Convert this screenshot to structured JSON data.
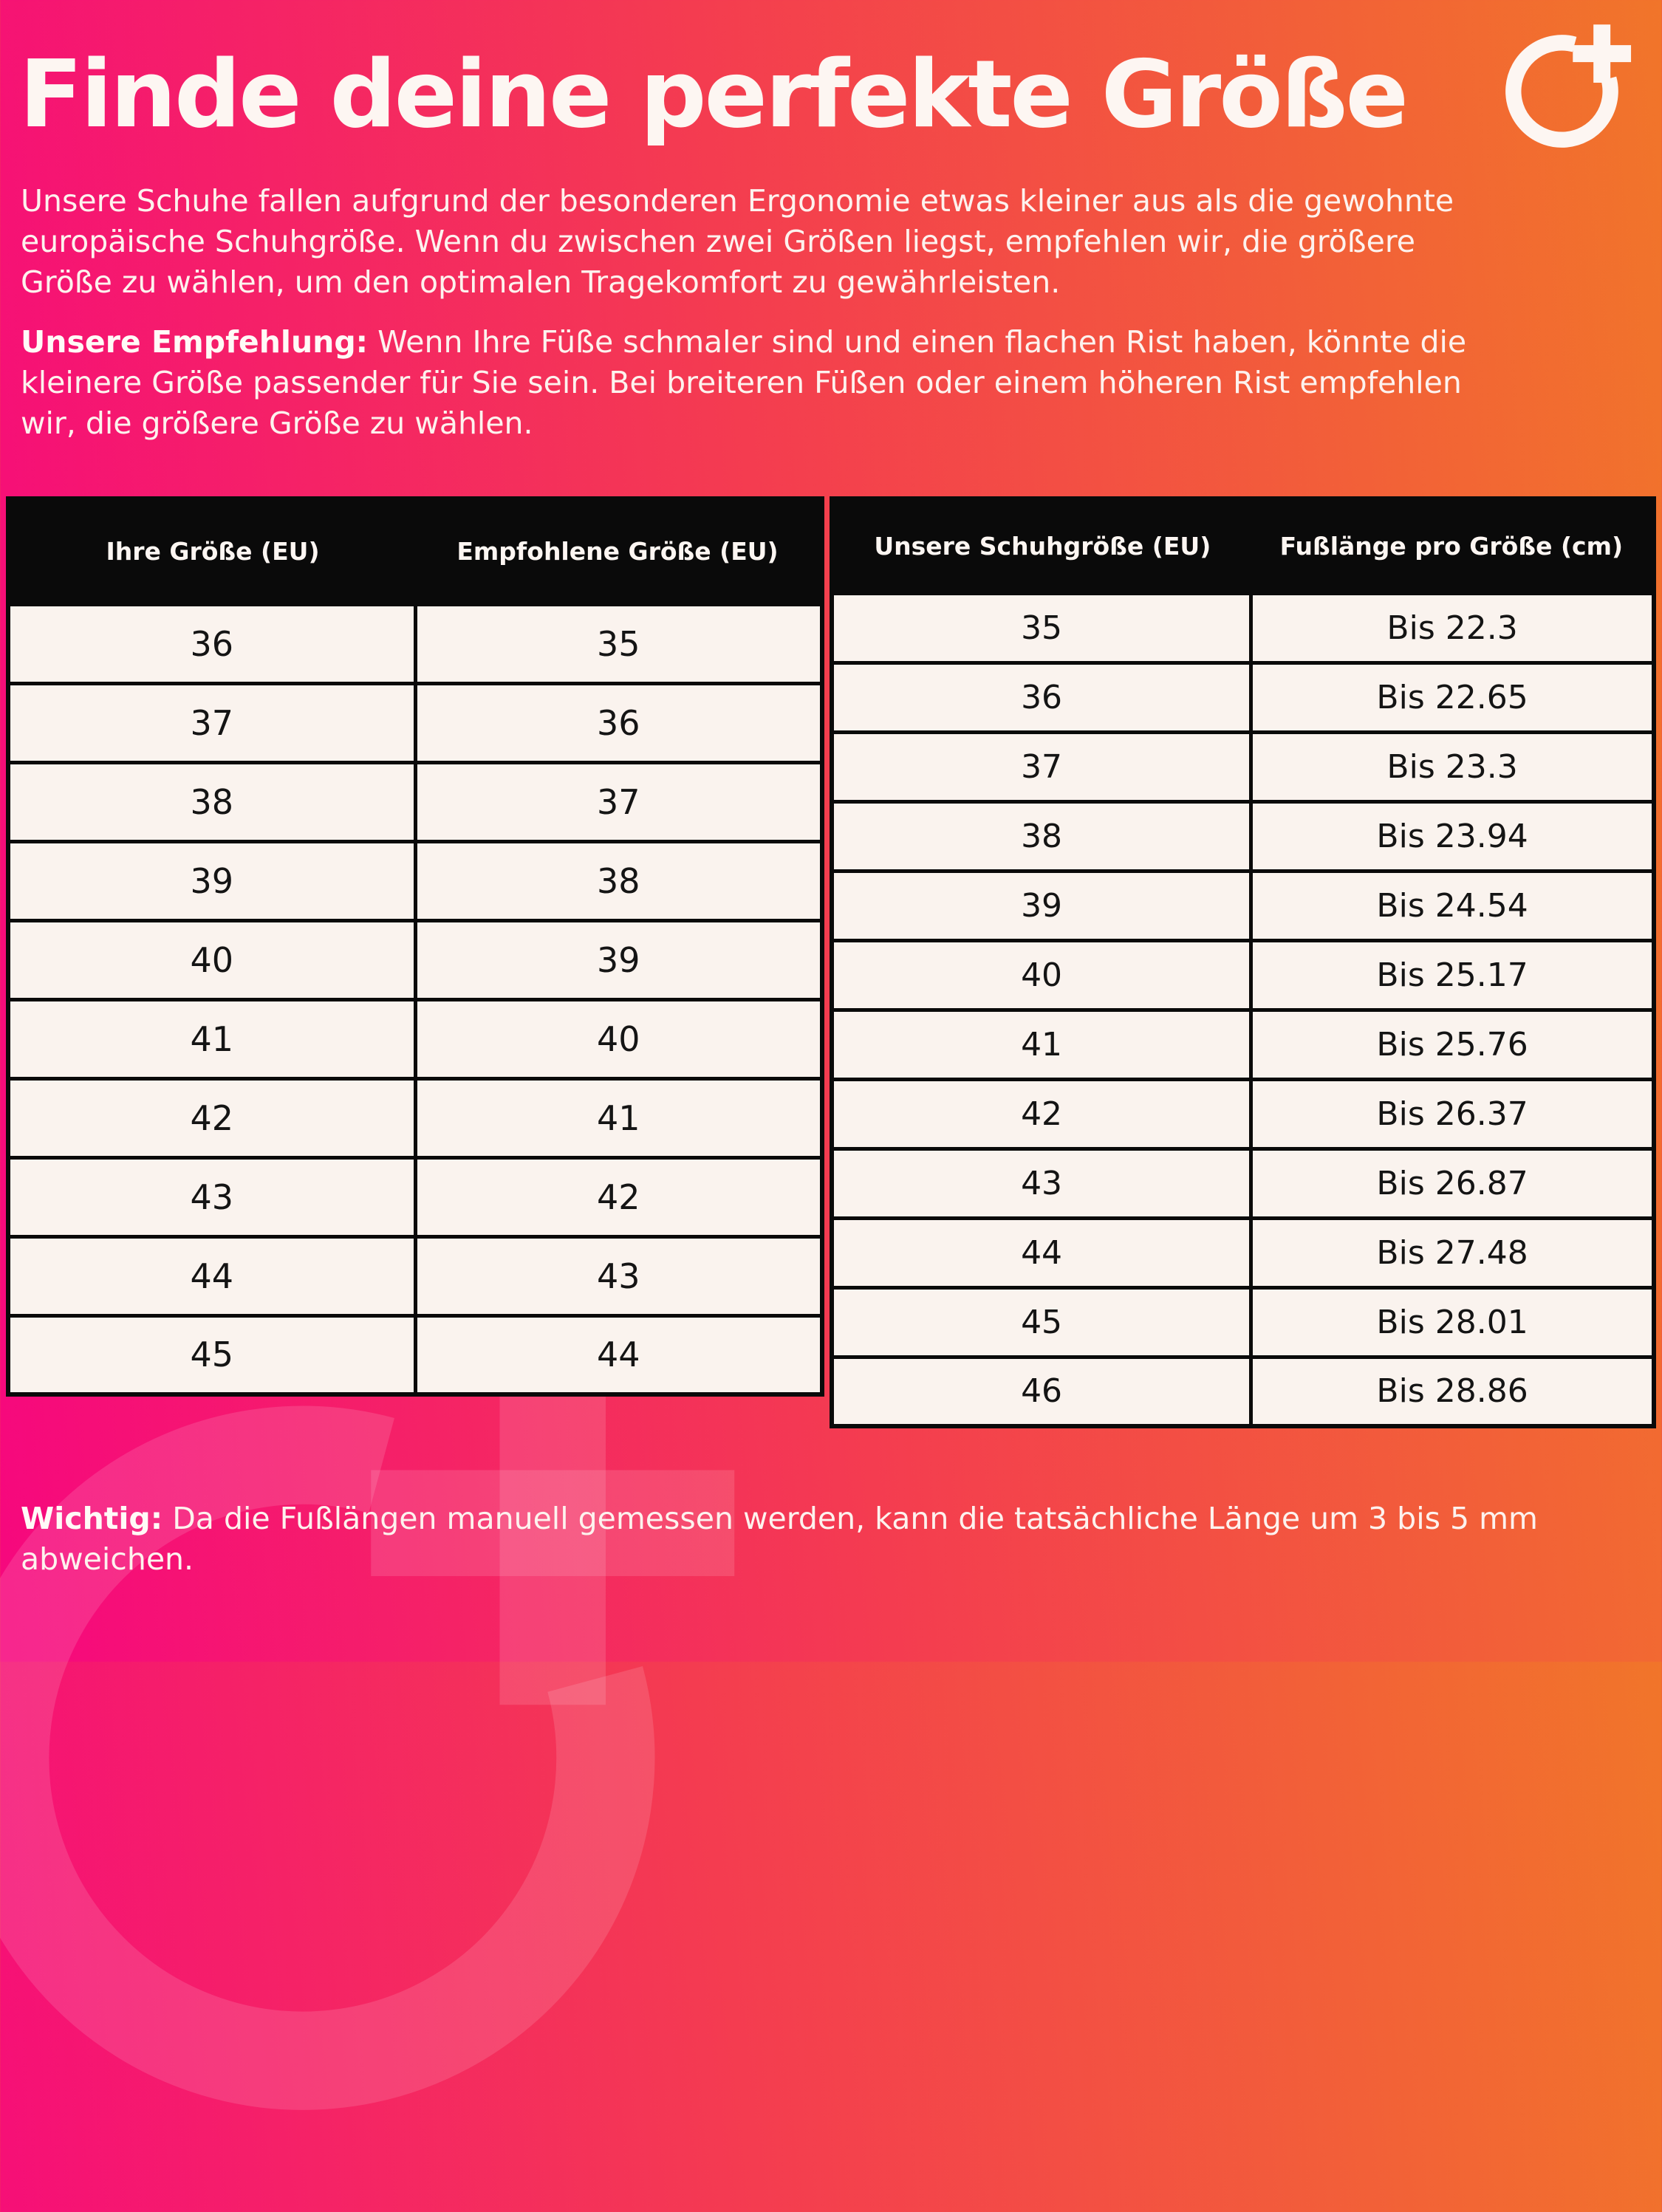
{
  "page": {
    "title": "Finde deine perfekte Größe",
    "intro": "Unsere Schuhe fallen aufgrund der besonderen Ergonomie etwas kleiner aus als die gewohnte\neuropäische Schuhgröße. Wenn du zwischen zwei Größen liegst, empfehlen wir, die größere\nGröße zu wählen, um den optimalen Tragekomfort zu gewährleisten.",
    "recommendation_label": "Unsere Empfehlung:",
    "recommendation_text": "Wenn Ihre Füße schmaler sind und einen flachen Rist haben, könnte die\nkleinere Größe passender für Sie sein. Bei breiteren Füßen oder einem höheren Rist empfehlen\nwir, die größere Größe zu wählen.",
    "note_label": "Wichtig:",
    "note_text": "Da die Fußlängen manuell gemessen werden, kann die tatsächliche Länge um 3 bis 5 mm\nabweichen."
  },
  "logo": {
    "name": "o-plus-brand-mark",
    "color": "#fdf6f2"
  },
  "size_table": {
    "headers": [
      "Ihre Größe (EU)",
      "Empfohlene Größe (EU)"
    ],
    "rows": [
      [
        "36",
        "35"
      ],
      [
        "37",
        "36"
      ],
      [
        "38",
        "37"
      ],
      [
        "39",
        "38"
      ],
      [
        "40",
        "39"
      ],
      [
        "41",
        "40"
      ],
      [
        "42",
        "41"
      ],
      [
        "43",
        "42"
      ],
      [
        "44",
        "43"
      ],
      [
        "45",
        "44"
      ]
    ]
  },
  "length_table": {
    "headers": [
      "Unsere Schuhgröße (EU)",
      "Fußlänge pro Größe (cm)"
    ],
    "rows": [
      [
        "35",
        "Bis 22.3"
      ],
      [
        "36",
        "Bis 22.65"
      ],
      [
        "37",
        "Bis 23.3"
      ],
      [
        "38",
        "Bis 23.94"
      ],
      [
        "39",
        "Bis 24.54"
      ],
      [
        "40",
        "Bis 25.17"
      ],
      [
        "41",
        "Bis 25.76"
      ],
      [
        "42",
        "Bis 26.37"
      ],
      [
        "43",
        "Bis 26.87"
      ],
      [
        "44",
        "Bis 27.48"
      ],
      [
        "45",
        "Bis 28.01"
      ],
      [
        "46",
        "Bis 28.86"
      ]
    ]
  },
  "colors": {
    "gradient_left": "#f6077e",
    "gradient_mid": "#f43c50",
    "gradient_right": "#f1752a",
    "table_header_bg": "#0a0a0a",
    "table_body_bg": "#faf3ee",
    "text_light": "#fdf2ee",
    "text_dark": "#141414"
  }
}
